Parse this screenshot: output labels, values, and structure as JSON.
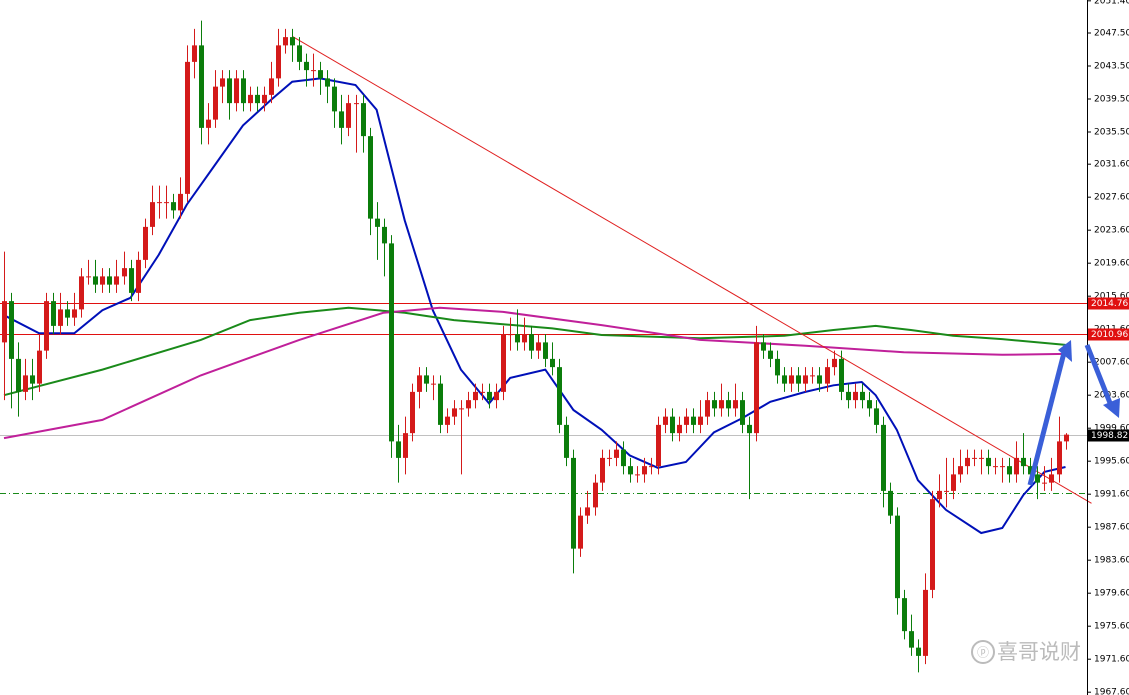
{
  "chart_data": {
    "type": "candlestick",
    "series": [
      {
        "up_color": "#d41a1a",
        "down_color": "#0b7d0b",
        "values": [
          [
            2010,
            2021,
            2003,
            2015
          ],
          [
            2015,
            2016,
            2002,
            2008
          ],
          [
            2008,
            2010,
            2001,
            2004
          ],
          [
            2004,
            2008,
            2003,
            2006
          ],
          [
            2006,
            2008,
            2003,
            2005
          ],
          [
            2005,
            2011,
            2004,
            2009
          ],
          [
            2009,
            2016,
            2008,
            2015
          ],
          [
            2015,
            2016,
            2011,
            2012
          ],
          [
            2012,
            2016,
            2011,
            2014
          ],
          [
            2014,
            2015,
            2012,
            2013
          ],
          [
            2013,
            2016,
            2012,
            2014
          ],
          [
            2014,
            2019,
            2013,
            2018
          ],
          [
            2018,
            2020,
            2017,
            2018
          ],
          [
            2018,
            2020,
            2016,
            2017
          ],
          [
            2017,
            2019,
            2016,
            2018
          ],
          [
            2018,
            2019,
            2016,
            2017
          ],
          [
            2017,
            2020,
            2016,
            2018
          ],
          [
            2018,
            2021,
            2017,
            2019
          ],
          [
            2019,
            2020,
            2015,
            2016
          ],
          [
            2016,
            2021,
            2015,
            2020
          ],
          [
            2020,
            2025,
            2019,
            2024
          ],
          [
            2024,
            2029,
            2023,
            2027
          ],
          [
            2027,
            2029,
            2025,
            2027
          ],
          [
            2027,
            2029,
            2025,
            2027
          ],
          [
            2027,
            2028,
            2025,
            2026
          ],
          [
            2026,
            2030,
            2025,
            2028
          ],
          [
            2028,
            2046,
            2027,
            2044
          ],
          [
            2044,
            2048,
            2042,
            2046
          ],
          [
            2046,
            2049,
            2034,
            2036
          ],
          [
            2036,
            2039,
            2034,
            2037
          ],
          [
            2037,
            2043,
            2036,
            2041
          ],
          [
            2041,
            2043,
            2039,
            2042
          ],
          [
            2042,
            2043,
            2037,
            2039
          ],
          [
            2039,
            2043,
            2038,
            2042
          ],
          [
            2042,
            2043,
            2038,
            2039
          ],
          [
            2039,
            2041,
            2038,
            2040
          ],
          [
            2040,
            2041,
            2038,
            2039
          ],
          [
            2039,
            2041,
            2038,
            2040
          ],
          [
            2040,
            2044,
            2039,
            2042
          ],
          [
            2042,
            2048,
            2041,
            2046
          ],
          [
            2046,
            2048,
            2045,
            2047
          ],
          [
            2047,
            2048,
            2044,
            2046
          ],
          [
            2046,
            2047,
            2043,
            2044
          ],
          [
            2044,
            2045,
            2041,
            2043
          ],
          [
            2043,
            2045,
            2041,
            2043
          ],
          [
            2043,
            2044,
            2040,
            2042
          ],
          [
            2042,
            2043,
            2039,
            2041
          ],
          [
            2041,
            2042,
            2036,
            2038
          ],
          [
            2038,
            2040,
            2034,
            2036
          ],
          [
            2036,
            2040,
            2035,
            2039
          ],
          [
            2039,
            2040,
            2033,
            2039
          ],
          [
            2039,
            2040,
            2033,
            2035
          ],
          [
            2035,
            2036,
            2023,
            2025
          ],
          [
            2025,
            2027,
            2020,
            2024
          ],
          [
            2024,
            2025,
            2018,
            2022
          ],
          [
            2022,
            2023,
            1996,
            1998
          ],
          [
            1998,
            2000,
            1993,
            1996
          ],
          [
            1996,
            2001,
            1994,
            1999
          ],
          [
            1999,
            2005,
            1998,
            2004
          ],
          [
            2004,
            2007,
            2002,
            2006
          ],
          [
            2006,
            2007,
            2004,
            2005
          ],
          [
            2005,
            2006,
            2003,
            2005
          ],
          [
            2005,
            2006,
            1999,
            2000
          ],
          [
            2000,
            2002,
            1999,
            2001
          ],
          [
            2001,
            2003,
            2000,
            2002
          ],
          [
            2002,
            2003,
            1994,
            2002
          ],
          [
            2002,
            2004,
            2001,
            2003
          ],
          [
            2003,
            2005,
            2002,
            2004
          ],
          [
            2004,
            2005,
            2003,
            2004
          ],
          [
            2004,
            2005,
            2002,
            2003
          ],
          [
            2003,
            2005,
            2002,
            2004
          ],
          [
            2004,
            2012,
            2003,
            2011
          ],
          [
            2011,
            2013,
            2009,
            2011
          ],
          [
            2011,
            2014,
            2009,
            2010
          ],
          [
            2010,
            2013,
            2009,
            2011
          ],
          [
            2011,
            2012,
            2008,
            2009
          ],
          [
            2009,
            2011,
            2008,
            2010
          ],
          [
            2010,
            2011,
            2007,
            2008
          ],
          [
            2008,
            2010,
            2006,
            2007
          ],
          [
            2007,
            2008,
            1999,
            2000
          ],
          [
            2000,
            2001,
            1995,
            1996
          ],
          [
            1996,
            1997,
            1982,
            1985
          ],
          [
            1985,
            1990,
            1984,
            1989
          ],
          [
            1989,
            1992,
            1988,
            1990
          ],
          [
            1990,
            1994,
            1989,
            1993
          ],
          [
            1993,
            1997,
            1992,
            1996
          ],
          [
            1996,
            1997,
            1995,
            1996
          ],
          [
            1996,
            1998,
            1995,
            1997
          ],
          [
            1997,
            1998,
            1994,
            1995
          ],
          [
            1995,
            1996,
            1993,
            1994
          ],
          [
            1994,
            1995,
            1993,
            1994
          ],
          [
            1994,
            1996,
            1993,
            1995
          ],
          [
            1995,
            1996,
            1994,
            1995
          ],
          [
            1995,
            2001,
            1994,
            2000
          ],
          [
            2000,
            2002,
            1999,
            2001
          ],
          [
            2001,
            2002,
            1998,
            1999
          ],
          [
            1999,
            2001,
            1998,
            2000
          ],
          [
            2000,
            2002,
            1999,
            2001
          ],
          [
            2001,
            2002,
            1999,
            2000
          ],
          [
            2000,
            2003,
            1999,
            2001
          ],
          [
            2001,
            2004,
            2000,
            2003
          ],
          [
            2003,
            2004,
            2001,
            2002
          ],
          [
            2002,
            2005,
            2001,
            2003
          ],
          [
            2003,
            2004,
            2001,
            2002
          ],
          [
            2002,
            2005,
            2001,
            2003
          ],
          [
            2003,
            2004,
            1999,
            2000
          ],
          [
            2000,
            2001,
            1991,
            1999
          ],
          [
            1999,
            2012,
            1998,
            2010
          ],
          [
            2010,
            2011,
            2008,
            2009
          ],
          [
            2009,
            2010,
            2007,
            2008
          ],
          [
            2008,
            2009,
            2005,
            2006
          ],
          [
            2006,
            2007,
            2004,
            2005
          ],
          [
            2005,
            2007,
            2004,
            2006
          ],
          [
            2006,
            2007,
            2004,
            2005
          ],
          [
            2005,
            2007,
            2004,
            2006
          ],
          [
            2006,
            2007,
            2005,
            2006
          ],
          [
            2006,
            2007,
            2004,
            2005
          ],
          [
            2005,
            2008,
            2004,
            2007
          ],
          [
            2007,
            2009,
            2006,
            2008
          ],
          [
            2008,
            2009,
            2003,
            2004
          ],
          [
            2004,
            2005,
            2002,
            2003
          ],
          [
            2003,
            2005,
            2002,
            2004
          ],
          [
            2004,
            2005,
            2002,
            2003
          ],
          [
            2003,
            2004,
            2001,
            2002
          ],
          [
            2002,
            2003,
            1999,
            2000
          ],
          [
            2000,
            2001,
            1990,
            1992
          ],
          [
            1992,
            1993,
            1988,
            1989
          ],
          [
            1989,
            1990,
            1977,
            1979
          ],
          [
            1979,
            1980,
            1974,
            1975
          ],
          [
            1975,
            1977,
            1972,
            1973
          ],
          [
            1973,
            1974,
            1970,
            1972
          ],
          [
            1972,
            1982,
            1971,
            1980
          ],
          [
            1980,
            1992,
            1979,
            1991
          ],
          [
            1991,
            1994,
            1990,
            1992
          ],
          [
            1992,
            1996,
            1990,
            1992
          ],
          [
            1992,
            1996,
            1991,
            1994
          ],
          [
            1994,
            1997,
            1993,
            1995
          ],
          [
            1995,
            1997,
            1994,
            1996
          ],
          [
            1996,
            1997,
            1995,
            1996
          ],
          [
            1996,
            1997,
            1994,
            1996
          ],
          [
            1996,
            1997,
            1994,
            1995
          ],
          [
            1995,
            1996,
            1994,
            1995
          ],
          [
            1995,
            1996,
            1993,
            1995
          ],
          [
            1995,
            1996,
            1993,
            1994
          ],
          [
            1994,
            1998,
            1993,
            1996
          ],
          [
            1996,
            1999,
            1994,
            1995
          ],
          [
            1995,
            1996,
            1993,
            1994
          ],
          [
            1994,
            1995,
            1991,
            1993
          ],
          [
            1993,
            1995,
            1992,
            1993
          ],
          [
            1993,
            1996,
            1992,
            1994
          ],
          [
            1994,
            2001,
            1993,
            1998
          ],
          [
            1998,
            1999,
            1997,
            1998.82
          ]
        ]
      }
    ],
    "lines": [
      {
        "color": "#0010b8",
        "x": [
          0,
          5,
          10,
          14,
          18,
          22,
          26,
          30,
          34,
          38,
          41,
          45,
          50,
          53,
          57,
          61,
          65,
          69,
          72,
          77,
          81,
          85,
          89,
          93,
          97,
          101,
          105,
          109,
          114,
          118,
          122,
          124,
          127,
          130,
          134,
          139,
          142,
          145,
          148,
          151
        ],
        "values": [
          2013.3,
          2011.1,
          2011.1,
          2013.9,
          2015.4,
          2020.6,
          2026.7,
          2031.5,
          2036.3,
          2039.4,
          2041.6,
          2042.0,
          2041.2,
          2038.2,
          2024.8,
          2013.9,
          2006.7,
          2002.6,
          2005.7,
          2006.7,
          2001.8,
          1999.4,
          1996.3,
          1994.8,
          1995.5,
          1999.1,
          2000.8,
          2002.8,
          2004.0,
          2004.8,
          2005.2,
          2003.6,
          1999.4,
          1993.3,
          1989.7,
          1986.9,
          1987.5,
          1991.5,
          1994.3,
          1994.9
        ]
      },
      {
        "color": "#1a8a1a",
        "x": [
          0,
          14,
          28,
          35,
          42,
          49,
          57,
          64,
          71,
          78,
          85,
          99,
          111,
          118,
          124,
          129,
          135,
          142,
          151
        ],
        "values": [
          2003.6,
          2006.7,
          2010.3,
          2012.7,
          2013.6,
          2014.2,
          2013.6,
          2012.7,
          2012.2,
          2011.7,
          2010.9,
          2010.5,
          2010.8,
          2011.5,
          2012.0,
          2011.5,
          2010.8,
          2010.4,
          2009.7
        ]
      },
      {
        "color": "#c0209a",
        "x": [
          0,
          14,
          28,
          42,
          54,
          62,
          71,
          85,
          99,
          114,
          128,
          142,
          151
        ],
        "values": [
          1998.4,
          2000.6,
          2006.0,
          2010.3,
          2013.6,
          2014.2,
          2013.7,
          2012.1,
          2010.3,
          2009.6,
          2008.8,
          2008.5,
          2008.6
        ]
      }
    ],
    "trendline": {
      "color": "#e02020",
      "x": [
        41,
        154.7
      ],
      "values": [
        2047.1,
        1990.5
      ]
    },
    "levels": [
      {
        "value": 2014.76,
        "color": "#e01010",
        "labeled": true
      },
      {
        "value": 2010.96,
        "color": "#e01010",
        "labeled": true
      },
      {
        "value": 1998.82,
        "color": "#c0c0c0",
        "label_color": "#000000",
        "labeled": true
      },
      {
        "value": 1991.8,
        "color": "#1a8a1a",
        "dashed": true,
        "labeled": false
      }
    ],
    "ylim": [
      1967.26,
      2051.5
    ],
    "yticks": [
      {
        "value": 2051.4,
        "label": "2051.40"
      },
      {
        "value": 2047.5,
        "label": "2047.50"
      },
      {
        "value": 2043.5,
        "label": "2043.50"
      },
      {
        "value": 2039.5,
        "label": "2039.50"
      },
      {
        "value": 2035.5,
        "label": "2035.50"
      },
      {
        "value": 2031.6,
        "label": "2031.60"
      },
      {
        "value": 2027.6,
        "label": "2027.60"
      },
      {
        "value": 2023.6,
        "label": "2023.60"
      },
      {
        "value": 2019.6,
        "label": "2019.60"
      },
      {
        "value": 2015.6,
        "label": "2015.60"
      },
      {
        "value": 2011.6,
        "label": "2011.60"
      },
      {
        "value": 2007.6,
        "label": "2007.60"
      },
      {
        "value": 2003.6,
        "label": "2003.60"
      },
      {
        "value": 1999.6,
        "label": "1999.60"
      },
      {
        "value": 1995.6,
        "label": "1995.60"
      },
      {
        "value": 1991.6,
        "label": "1991.60"
      },
      {
        "value": 1987.6,
        "label": "1987.60"
      },
      {
        "value": 1983.6,
        "label": "1983.60"
      },
      {
        "value": 1979.6,
        "label": "1979.60"
      },
      {
        "value": 1975.6,
        "label": "1975.60"
      },
      {
        "value": 1971.6,
        "label": "1971.60"
      },
      {
        "value": 1967.6,
        "label": "1967.60"
      }
    ],
    "watermark": "喜哥说财"
  }
}
